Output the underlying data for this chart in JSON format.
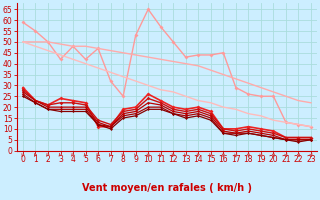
{
  "title": "",
  "xlabel": "Vent moyen/en rafales ( km/h )",
  "bg_color": "#cceeff",
  "grid_color": "#aadddd",
  "xlim": [
    -0.5,
    23.5
  ],
  "ylim": [
    0,
    68
  ],
  "yticks": [
    0,
    5,
    10,
    15,
    20,
    25,
    30,
    35,
    40,
    45,
    50,
    55,
    60,
    65
  ],
  "xticks": [
    0,
    1,
    2,
    3,
    4,
    5,
    6,
    7,
    8,
    9,
    10,
    11,
    12,
    13,
    14,
    15,
    16,
    17,
    18,
    19,
    20,
    21,
    22,
    23
  ],
  "lines": [
    {
      "x": [
        0,
        1,
        2,
        3,
        4,
        5,
        6,
        7,
        8,
        9,
        10,
        11,
        12,
        13,
        14,
        15,
        16,
        17,
        18,
        19,
        20,
        21,
        22,
        23
      ],
      "y": [
        59,
        55,
        50,
        42,
        48,
        42,
        47,
        32,
        25,
        53,
        65,
        57,
        50,
        43,
        44,
        44,
        45,
        29,
        26,
        25,
        25,
        13,
        12,
        11
      ],
      "color": "#ff9999",
      "lw": 1.0,
      "marker": "D",
      "ms": 2.0
    },
    {
      "x": [
        0,
        1,
        2,
        3,
        4,
        5,
        6,
        7,
        8,
        9,
        10,
        11,
        12,
        13,
        14,
        15,
        16,
        17,
        18,
        19,
        20,
        21,
        22,
        23
      ],
      "y": [
        50,
        50,
        50,
        49,
        48,
        48,
        47,
        46,
        45,
        44,
        43,
        42,
        41,
        40,
        39,
        37,
        35,
        33,
        31,
        29,
        27,
        25,
        23,
        22
      ],
      "color": "#ffaaaa",
      "lw": 1.0,
      "marker": null,
      "ms": 0
    },
    {
      "x": [
        0,
        1,
        2,
        3,
        4,
        5,
        6,
        7,
        8,
        9,
        10,
        11,
        12,
        13,
        14,
        15,
        16,
        17,
        18,
        19,
        20,
        21,
        22,
        23
      ],
      "y": [
        50,
        48,
        46,
        44,
        42,
        40,
        38,
        36,
        34,
        32,
        30,
        28,
        27,
        25,
        23,
        22,
        20,
        19,
        17,
        16,
        14,
        13,
        12,
        11
      ],
      "color": "#ffbbbb",
      "lw": 1.0,
      "marker": null,
      "ms": 0
    },
    {
      "x": [
        0,
        1,
        2,
        3,
        4,
        5,
        6,
        7,
        8,
        9,
        10,
        11,
        12,
        13,
        14,
        15,
        16,
        17,
        18,
        19,
        20,
        21,
        22,
        23
      ],
      "y": [
        29,
        23,
        21,
        24,
        23,
        22,
        11,
        11,
        19,
        20,
        26,
        23,
        20,
        19,
        20,
        18,
        10,
        10,
        11,
        10,
        9,
        6,
        6,
        6
      ],
      "color": "#ee2222",
      "lw": 1.2,
      "marker": "D",
      "ms": 2.0
    },
    {
      "x": [
        0,
        1,
        2,
        3,
        4,
        5,
        6,
        7,
        8,
        9,
        10,
        11,
        12,
        13,
        14,
        15,
        16,
        17,
        18,
        19,
        20,
        21,
        22,
        23
      ],
      "y": [
        28,
        23,
        21,
        22,
        22,
        21,
        14,
        12,
        18,
        19,
        24,
        22,
        19,
        18,
        19,
        17,
        10,
        9,
        10,
        9,
        8,
        6,
        6,
        6
      ],
      "color": "#cc1111",
      "lw": 1.0,
      "marker": "D",
      "ms": 1.8
    },
    {
      "x": [
        0,
        1,
        2,
        3,
        4,
        5,
        6,
        7,
        8,
        9,
        10,
        11,
        12,
        13,
        14,
        15,
        16,
        17,
        18,
        19,
        20,
        21,
        22,
        23
      ],
      "y": [
        27,
        23,
        20,
        20,
        20,
        20,
        13,
        11,
        17,
        18,
        22,
        21,
        18,
        17,
        18,
        16,
        9,
        8,
        9,
        8,
        7,
        5,
        5,
        5
      ],
      "color": "#bb0000",
      "lw": 0.9,
      "marker": "D",
      "ms": 1.5
    },
    {
      "x": [
        0,
        1,
        2,
        3,
        4,
        5,
        6,
        7,
        8,
        9,
        10,
        11,
        12,
        13,
        14,
        15,
        16,
        17,
        18,
        19,
        20,
        21,
        22,
        23
      ],
      "y": [
        26,
        22,
        19,
        19,
        19,
        19,
        12,
        11,
        16,
        17,
        20,
        20,
        17,
        16,
        17,
        15,
        8,
        8,
        8,
        7,
        6,
        5,
        5,
        5
      ],
      "color": "#aa0000",
      "lw": 0.9,
      "marker": "D",
      "ms": 1.5
    },
    {
      "x": [
        0,
        1,
        2,
        3,
        4,
        5,
        6,
        7,
        8,
        9,
        10,
        11,
        12,
        13,
        14,
        15,
        16,
        17,
        18,
        19,
        20,
        21,
        22,
        23
      ],
      "y": [
        25,
        22,
        19,
        18,
        18,
        18,
        12,
        10,
        15,
        16,
        19,
        19,
        17,
        15,
        16,
        14,
        8,
        7,
        8,
        7,
        6,
        5,
        4,
        5
      ],
      "color": "#880000",
      "lw": 0.9,
      "marker": "D",
      "ms": 1.5
    }
  ],
  "xlabel_color": "#cc0000",
  "xlabel_fontsize": 7,
  "tick_label_color": "#cc0000",
  "tick_label_fontsize": 5.5,
  "arrow_color": "#cc3333",
  "spine_color": "#cc0000"
}
